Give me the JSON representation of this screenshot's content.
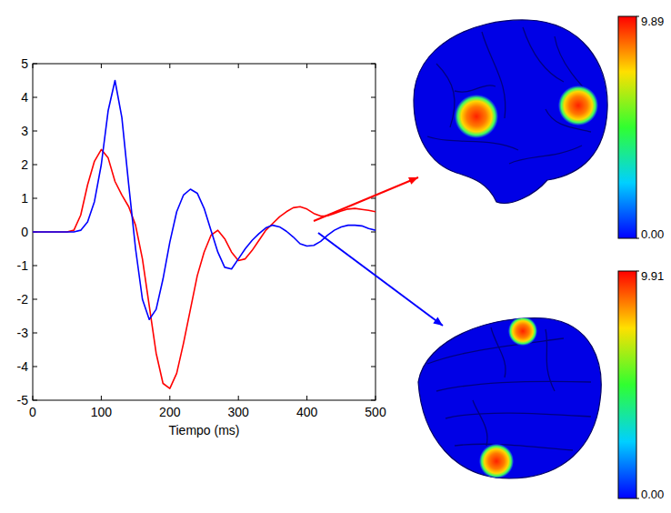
{
  "chart_data": {
    "type": "line",
    "x_label": "Tiempo (ms)",
    "xlim": [
      0,
      500
    ],
    "xticks": [
      0,
      100,
      200,
      300,
      400,
      500
    ],
    "ylim": [
      -5,
      5
    ],
    "yticks": [
      -5,
      -4,
      -3,
      -2,
      -1,
      0,
      1,
      2,
      3,
      4,
      5
    ],
    "x": [
      0,
      10,
      20,
      30,
      40,
      50,
      60,
      70,
      80,
      90,
      100,
      110,
      120,
      130,
      140,
      150,
      160,
      170,
      180,
      190,
      200,
      210,
      220,
      230,
      240,
      250,
      260,
      270,
      280,
      290,
      300,
      310,
      320,
      330,
      340,
      350,
      360,
      370,
      380,
      390,
      400,
      410,
      420,
      430,
      440,
      450,
      460,
      470,
      480,
      490,
      500
    ],
    "series": [
      {
        "color": "#ff0000",
        "values": [
          0,
          0,
          0,
          0,
          0,
          0,
          0.05,
          0.5,
          1.4,
          2.1,
          2.45,
          2.2,
          1.5,
          1.1,
          0.75,
          0.2,
          -0.8,
          -2.2,
          -3.6,
          -4.5,
          -4.65,
          -4.2,
          -3.3,
          -2.3,
          -1.3,
          -0.6,
          -0.1,
          0.05,
          -0.2,
          -0.6,
          -0.85,
          -0.8,
          -0.55,
          -0.25,
          0.05,
          0.25,
          0.45,
          0.6,
          0.72,
          0.75,
          0.68,
          0.55,
          0.47,
          0.48,
          0.55,
          0.62,
          0.68,
          0.7,
          0.67,
          0.64,
          0.6
        ]
      },
      {
        "color": "#0000ff",
        "values": [
          0,
          0,
          0,
          0,
          0,
          0,
          0,
          0.05,
          0.3,
          0.9,
          2.0,
          3.6,
          4.5,
          3.4,
          1.4,
          -0.5,
          -2.0,
          -2.6,
          -2.3,
          -1.4,
          -0.3,
          0.6,
          1.1,
          1.27,
          1.15,
          0.7,
          0.05,
          -0.6,
          -1.05,
          -1.1,
          -0.8,
          -0.5,
          -0.25,
          -0.05,
          0.12,
          0.2,
          0.15,
          0.02,
          -0.15,
          -0.35,
          -0.42,
          -0.4,
          -0.28,
          -0.1,
          0.05,
          0.15,
          0.2,
          0.2,
          0.18,
          0.1,
          0.05
        ]
      }
    ],
    "colorbars": [
      {
        "range": [
          0,
          9.89
        ],
        "ticks": [
          {
            "value": 0,
            "label": "0.00"
          },
          9.89
        ]
      },
      {
        "range": [
          0,
          9.91
        ],
        "ticks": [
          {
            "value": 0,
            "label": "0.00"
          },
          9.91
        ]
      }
    ]
  }
}
